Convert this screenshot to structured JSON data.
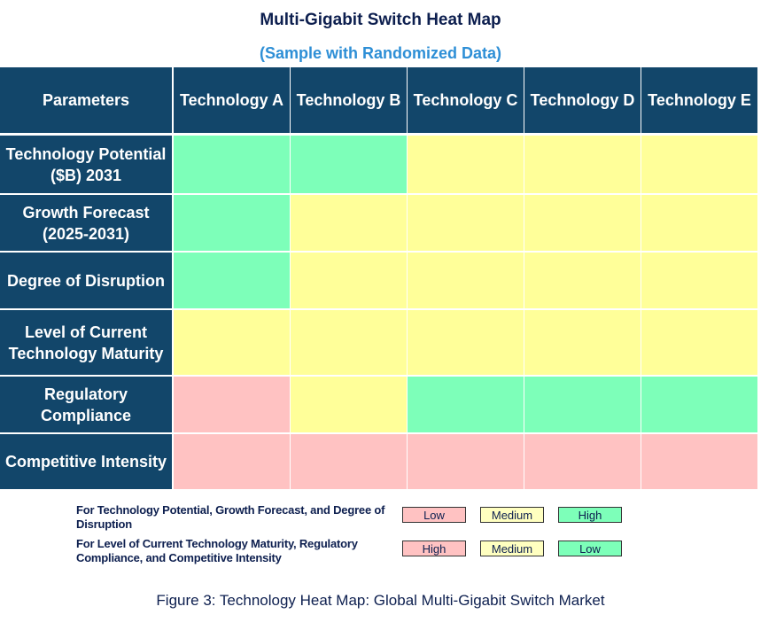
{
  "chart_data": {
    "type": "heatmap",
    "title": "Multi-Gigabit Switch Heat Map",
    "subtitle": "(Sample with Randomized Data)",
    "corner_label": "Parameters",
    "columns": [
      "Technology A",
      "Technology B",
      "Technology C",
      "Technology D",
      "Technology E"
    ],
    "rows": [
      {
        "label": "Technology Potential ($B) 2031",
        "values": [
          "High",
          "High",
          "Medium",
          "Medium",
          "Medium"
        ]
      },
      {
        "label": "Growth Forecast (2025-2031)",
        "values": [
          "High",
          "Medium",
          "Medium",
          "Medium",
          "Medium"
        ]
      },
      {
        "label": "Degree of Disruption",
        "values": [
          "High",
          "Medium",
          "Medium",
          "Medium",
          "Medium"
        ]
      },
      {
        "label": "Level of Current Technology Maturity",
        "values": [
          "Medium",
          "Medium",
          "Medium",
          "Medium",
          "Medium"
        ]
      },
      {
        "label": "Regulatory Compliance",
        "values": [
          "High",
          "Medium",
          "Low",
          "Low",
          "Low"
        ]
      },
      {
        "label": "Competitive Intensity",
        "values": [
          "High",
          "High",
          "High",
          "High",
          "High"
        ]
      }
    ],
    "colors": {
      "header": "#12466a",
      "red": "#ffc2c2",
      "yellow": "#ffff99",
      "green": "#7dffb9"
    }
  },
  "legend": [
    {
      "text": "For Technology Potential, Growth Forecast, and Degree of Disruption",
      "items": [
        {
          "label": "Low",
          "color": "#ffc2c2"
        },
        {
          "label": "Medium",
          "color": "#ffffc0"
        },
        {
          "label": "High",
          "color": "#7dffb9"
        }
      ]
    },
    {
      "text": "For Level of Current Technology Maturity, Regulatory Compliance, and Competitive Intensity",
      "items": [
        {
          "label": "High",
          "color": "#ffc2c2"
        },
        {
          "label": "Medium",
          "color": "#ffffc0"
        },
        {
          "label": "Low",
          "color": "#7dffb9"
        }
      ]
    }
  ],
  "caption": "Figure 3: Technology Heat Map: Global Multi-Gigabit Switch Market"
}
